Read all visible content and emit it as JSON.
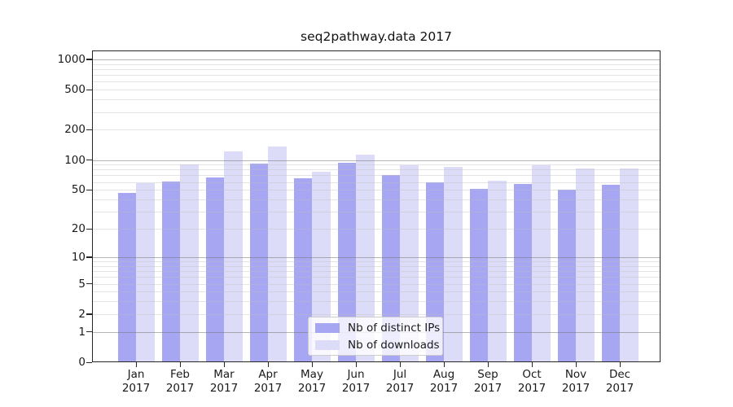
{
  "figure": {
    "title": "seq2pathway.data 2017",
    "background": "#ffffff"
  },
  "chart_data": {
    "type": "bar",
    "title": "seq2pathway.data 2017",
    "categories": [
      "Jan 2017",
      "Feb 2017",
      "Mar 2017",
      "Apr 2017",
      "May 2017",
      "Jun 2017",
      "Jul 2017",
      "Aug 2017",
      "Sep 2017",
      "Oct 2017",
      "Nov 2017",
      "Dec 2017"
    ],
    "series": [
      {
        "name": "Nb of distinct IPs",
        "color": "#a6a6f2",
        "values": [
          47,
          61,
          67,
          92,
          66,
          93,
          71,
          60,
          51,
          57,
          50,
          56
        ]
      },
      {
        "name": "Nb of downloads",
        "color": "#dcdcf8",
        "values": [
          58,
          91,
          122,
          135,
          76,
          114,
          88,
          86,
          62,
          89,
          82,
          82
        ]
      }
    ],
    "xlabel": "",
    "ylabel": "",
    "yscale": "log1p",
    "ylim": [
      0,
      1200
    ],
    "y_tick_values": [
      1000,
      500,
      200,
      100,
      50,
      20,
      10,
      5,
      2,
      1,
      0
    ],
    "gridlines": {
      "major": [
        1,
        10,
        100,
        1000
      ],
      "minor": [
        2,
        3,
        4,
        5,
        6,
        7,
        8,
        9,
        20,
        30,
        40,
        50,
        60,
        70,
        80,
        90,
        200,
        300,
        400,
        500,
        600,
        700,
        800,
        900
      ]
    },
    "grid": true,
    "legend_position": "lower center"
  }
}
